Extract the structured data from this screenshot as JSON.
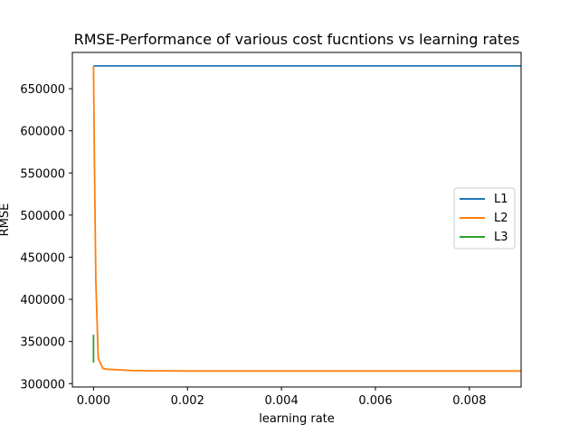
{
  "chart_data": {
    "type": "line",
    "title": "RMSE-Performance of various cost fucntions vs learning rates",
    "xlabel": "learning rate",
    "ylabel": "RMSE",
    "xlim": [
      -0.00045,
      0.0091
    ],
    "ylim": [
      296000,
      693000
    ],
    "x_ticks": [
      0.0,
      0.002,
      0.004,
      0.006,
      0.008
    ],
    "x_tick_labels": [
      "0.000",
      "0.002",
      "0.004",
      "0.006",
      "0.008"
    ],
    "y_ticks": [
      300000,
      350000,
      400000,
      450000,
      500000,
      550000,
      600000,
      650000
    ],
    "y_tick_labels": [
      "300000",
      "350000",
      "400000",
      "450000",
      "500000",
      "550000",
      "600000",
      "650000"
    ],
    "grid": false,
    "legend_position": "center-right",
    "series": [
      {
        "name": "L1",
        "color": "#1f77b4",
        "x": [
          0.0,
          0.0001,
          0.0005,
          0.001,
          0.002,
          0.004,
          0.006,
          0.008,
          0.0091
        ],
        "y": [
          677000,
          677000,
          677000,
          677000,
          677000,
          677000,
          677000,
          677000,
          677000
        ]
      },
      {
        "name": "L2",
        "color": "#ff7f0e",
        "x": [
          0.0,
          2e-05,
          5e-05,
          0.0001,
          0.0002,
          0.0003,
          0.0005,
          0.0008,
          0.0012,
          0.0016,
          0.002,
          0.003,
          0.004,
          0.005,
          0.006,
          0.007,
          0.008,
          0.0091
        ],
        "y": [
          677000,
          560000,
          420000,
          330000,
          318000,
          317000,
          316500,
          315500,
          315200,
          315100,
          315000,
          315000,
          315000,
          315000,
          315000,
          315000,
          315000,
          315000
        ]
      },
      {
        "name": "L3",
        "color": "#2ca02c",
        "x": [
          0.0,
          0.0
        ],
        "y": [
          358000,
          325000
        ]
      }
    ]
  }
}
